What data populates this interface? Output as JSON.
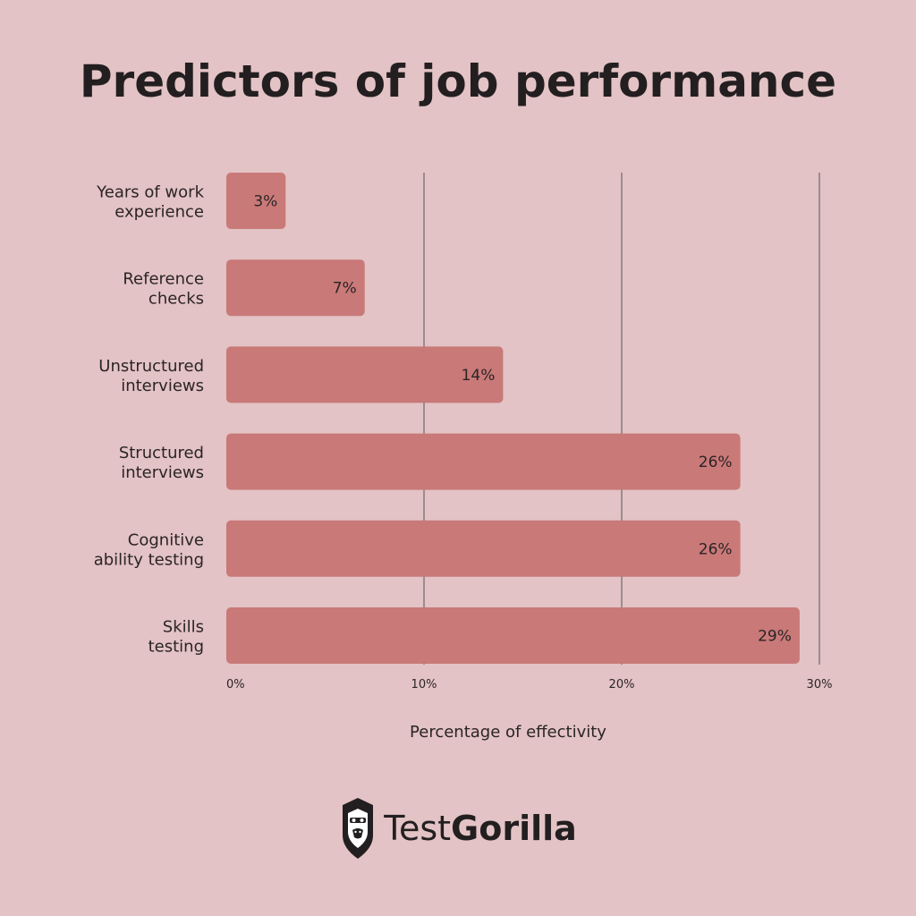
{
  "colors": {
    "background": "#e3c3c5",
    "bar": "#c97978",
    "grid": "#555555",
    "text": "#231f20"
  },
  "chart_data": {
    "type": "bar",
    "orientation": "horizontal",
    "title": "Predictors of job performance",
    "xlabel": "Percentage of effectivity",
    "ylabel": "",
    "xlim": [
      0,
      30
    ],
    "xticks": [
      0,
      10,
      20,
      30
    ],
    "xtick_labels": [
      "0%",
      "10%",
      "20%",
      "30%"
    ],
    "grid": "vertical",
    "categories": [
      [
        "Years of work",
        "experience"
      ],
      [
        "Reference",
        "checks"
      ],
      [
        "Unstructured",
        "interviews"
      ],
      [
        "Structured",
        "interviews"
      ],
      [
        "Cognitive",
        "ability testing"
      ],
      [
        "Skills",
        "testing"
      ]
    ],
    "values": [
      3,
      7,
      14,
      26,
      26,
      29
    ],
    "value_labels": [
      "3%",
      "7%",
      "14%",
      "26%",
      "26%",
      "29%"
    ]
  },
  "logo": {
    "icon": "gorilla-icon",
    "name_light": "Test",
    "name_bold": "Gorilla"
  }
}
